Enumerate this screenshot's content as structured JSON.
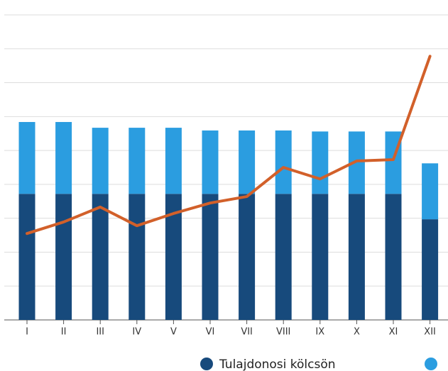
{
  "chart_data": {
    "type": "bar",
    "categories": [
      "I",
      "II",
      "III",
      "IV",
      "V",
      "VI",
      "VII",
      "VIII",
      "IX",
      "X",
      "XI",
      "XII"
    ],
    "series": [
      {
        "name": "Tulajdonosi kölcsön",
        "color": "#174a7c",
        "values": [
          3.72,
          3.72,
          3.72,
          3.72,
          3.72,
          3.72,
          3.72,
          3.72,
          3.72,
          3.72,
          3.72,
          2.97
        ]
      },
      {
        "color": "#2b9de0",
        "values": [
          2.12,
          2.12,
          1.95,
          1.95,
          1.95,
          1.87,
          1.87,
          1.87,
          1.84,
          1.84,
          1.84,
          1.65
        ]
      },
      {
        "type": "line",
        "color": "#d2602a",
        "values": [
          2.55,
          2.89,
          3.33,
          2.78,
          3.14,
          3.45,
          3.64,
          4.5,
          4.16,
          4.69,
          4.73,
          7.78
        ]
      }
    ],
    "ylim": [
      0,
      9
    ],
    "yticks": [
      0,
      1,
      2,
      3,
      4,
      5,
      6,
      7,
      8,
      9
    ],
    "grid": true,
    "stacked": true
  }
}
